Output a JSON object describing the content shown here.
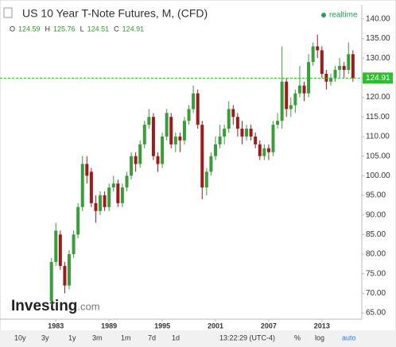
{
  "chart_data": {
    "type": "candlestick",
    "title": "US 10 Year T-Note Futures, M, (CFD)",
    "status": "realtime",
    "ohlc_legend": [
      {
        "label": "O",
        "value": 124.59
      },
      {
        "label": "H",
        "value": 125.76
      },
      {
        "label": "L",
        "value": 124.51
      },
      {
        "label": "C",
        "value": 124.91
      }
    ],
    "last_price": 124.91,
    "up_color": "#3a9c3a",
    "down_color": "#9b1c1c",
    "price_line_color": "#2bbf2b",
    "x": [
      1982.5,
      1983,
      1983.5,
      1984,
      1984.5,
      1985,
      1985.5,
      1986,
      1986.5,
      1987,
      1987.5,
      1988,
      1988.5,
      1989,
      1989.5,
      1990,
      1990.5,
      1991,
      1991.5,
      1992,
      1992.5,
      1993,
      1993.5,
      1994,
      1994.5,
      1995,
      1995.5,
      1996,
      1996.5,
      1997,
      1997.5,
      1998,
      1998.5,
      1999,
      1999.5,
      2000,
      2000.5,
      2001,
      2001.5,
      2002,
      2002.5,
      2003,
      2003.5,
      2004,
      2004.5,
      2005,
      2005.5,
      2006,
      2006.5,
      2007,
      2007.5,
      2008,
      2008.5,
      2009,
      2009.5,
      2010,
      2010.5,
      2011,
      2011.5,
      2012,
      2012.5,
      2013,
      2013.5,
      2014,
      2014.5,
      2015,
      2015.5,
      2016,
      2016.5
    ],
    "open": [
      68,
      78,
      85,
      77,
      72,
      80,
      85,
      92,
      103,
      101,
      93,
      91,
      95,
      92,
      97,
      98,
      93,
      97,
      100,
      105,
      103,
      108,
      113,
      115,
      105,
      103,
      110,
      115,
      108,
      110,
      109,
      114,
      117,
      121,
      113,
      97,
      101,
      105,
      108,
      110,
      112,
      117,
      115,
      112,
      110,
      112,
      110,
      108,
      105,
      107,
      106,
      113,
      114,
      124,
      117,
      118,
      121,
      123,
      121,
      129,
      133,
      132,
      126,
      124,
      125,
      127,
      128,
      127,
      131
    ],
    "high": [
      79,
      88,
      86,
      78,
      81,
      86,
      93,
      105,
      105,
      102,
      95,
      96,
      96,
      98,
      100,
      99,
      98,
      101,
      106,
      106,
      109,
      114,
      117,
      116,
      106,
      111,
      117,
      116,
      111,
      111,
      115,
      118,
      123,
      122,
      114,
      102,
      106,
      110,
      113,
      113,
      119,
      118,
      116,
      114,
      113,
      113,
      111,
      109,
      108,
      108,
      114,
      116,
      133,
      125,
      120,
      122,
      128,
      124,
      131,
      134,
      136,
      133,
      127,
      126,
      128,
      130,
      129,
      134,
      132
    ],
    "low": [
      67,
      77,
      76,
      70,
      71,
      79,
      84,
      91,
      98,
      92,
      88,
      90,
      91,
      91,
      96,
      92,
      92,
      96,
      99,
      101,
      102,
      107,
      112,
      104,
      101,
      102,
      109,
      107,
      106,
      106,
      108,
      113,
      116,
      112,
      94,
      95,
      100,
      104,
      107,
      108,
      111,
      113,
      110,
      108,
      109,
      109,
      107,
      104,
      104,
      104,
      105,
      112,
      112,
      115,
      115,
      116,
      120,
      119,
      120,
      128,
      130,
      125,
      122,
      123,
      124,
      125,
      125,
      126,
      124
    ],
    "close": [
      78,
      86,
      77,
      72,
      80,
      85,
      92,
      103,
      100,
      93,
      91,
      95,
      92,
      97,
      98,
      93,
      97,
      100,
      105,
      103,
      108,
      113,
      115,
      105,
      103,
      110,
      116,
      108,
      110,
      109,
      114,
      117,
      121,
      113,
      97,
      101,
      105,
      108,
      110,
      112,
      117,
      115,
      112,
      110,
      112,
      110,
      108,
      105,
      107,
      106,
      113,
      114,
      124,
      117,
      118,
      121,
      123,
      121,
      129,
      133,
      132,
      126,
      124,
      125,
      127,
      128,
      127,
      131,
      124.91
    ],
    "xlim": [
      1976.7,
      2017.5
    ],
    "xticks": [
      1983,
      1989,
      1995,
      2001,
      2007,
      2013
    ],
    "ylim": [
      63.4,
      142.8
    ],
    "yticks": [
      {
        "value": 65,
        "label": "65.00"
      },
      {
        "value": 70,
        "label": "70.00"
      },
      {
        "value": 75,
        "label": "75.00"
      },
      {
        "value": 80,
        "label": "80.00"
      },
      {
        "value": 85,
        "label": "85.00"
      },
      {
        "value": 90,
        "label": "90.00"
      },
      {
        "value": 95,
        "label": "95.00"
      },
      {
        "value": 100,
        "label": "100.00"
      },
      {
        "value": 105,
        "label": "105.00"
      },
      {
        "value": 110,
        "label": "110.00"
      },
      {
        "value": 115,
        "label": "115.00"
      },
      {
        "value": 120,
        "label": "120.00"
      },
      {
        "value": 125,
        "label": "125.00"
      },
      {
        "value": 130,
        "label": "130.00"
      },
      {
        "value": 135,
        "label": "135.00"
      },
      {
        "value": 140,
        "label": "140.00"
      }
    ],
    "logo": "Investing",
    "logo_suffix": ".com",
    "periods": [
      "10y",
      "3y",
      "1y",
      "3m",
      "1m",
      "7d",
      "1d"
    ],
    "time": "13:22:29 (UTC-4)",
    "options": [
      "%",
      "log",
      "auto"
    ]
  }
}
